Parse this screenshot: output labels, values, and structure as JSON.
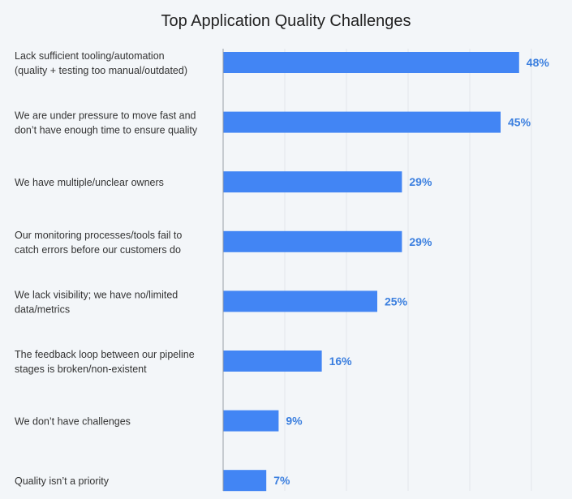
{
  "chart_data": {
    "type": "bar",
    "orientation": "horizontal",
    "title": "Top Application Quality Challenges",
    "xlabel": "",
    "ylabel": "",
    "xlim": [
      0,
      56
    ],
    "grid": true,
    "categories": [
      [
        "Lack sufficient tooling/automation",
        "(quality + testing too manual/outdated)"
      ],
      [
        "We are under pressure to move fast and",
        "don’t have enough time to ensure quality"
      ],
      [
        "We have multiple/unclear owners"
      ],
      [
        "Our monitoring processes/tools fail to",
        "catch errors before our customers do"
      ],
      [
        "We lack visibility; we have no/limited",
        "data/metrics"
      ],
      [
        "The feedback loop between our pipeline",
        "stages is broken/non-existent"
      ],
      [
        "We don’t have challenges"
      ],
      [
        "Quality isn’t a priority"
      ]
    ],
    "values": [
      48,
      45,
      29,
      29,
      25,
      16,
      9,
      7
    ],
    "value_labels": [
      "48%",
      "45%",
      "29%",
      "29%",
      "25%",
      "16%",
      "9%",
      "7%"
    ],
    "colors": {
      "bar": "#4285f4",
      "value_label": "#3b7fdf",
      "grid": "#e3e7ec",
      "axis": "#9aa0a6"
    }
  }
}
